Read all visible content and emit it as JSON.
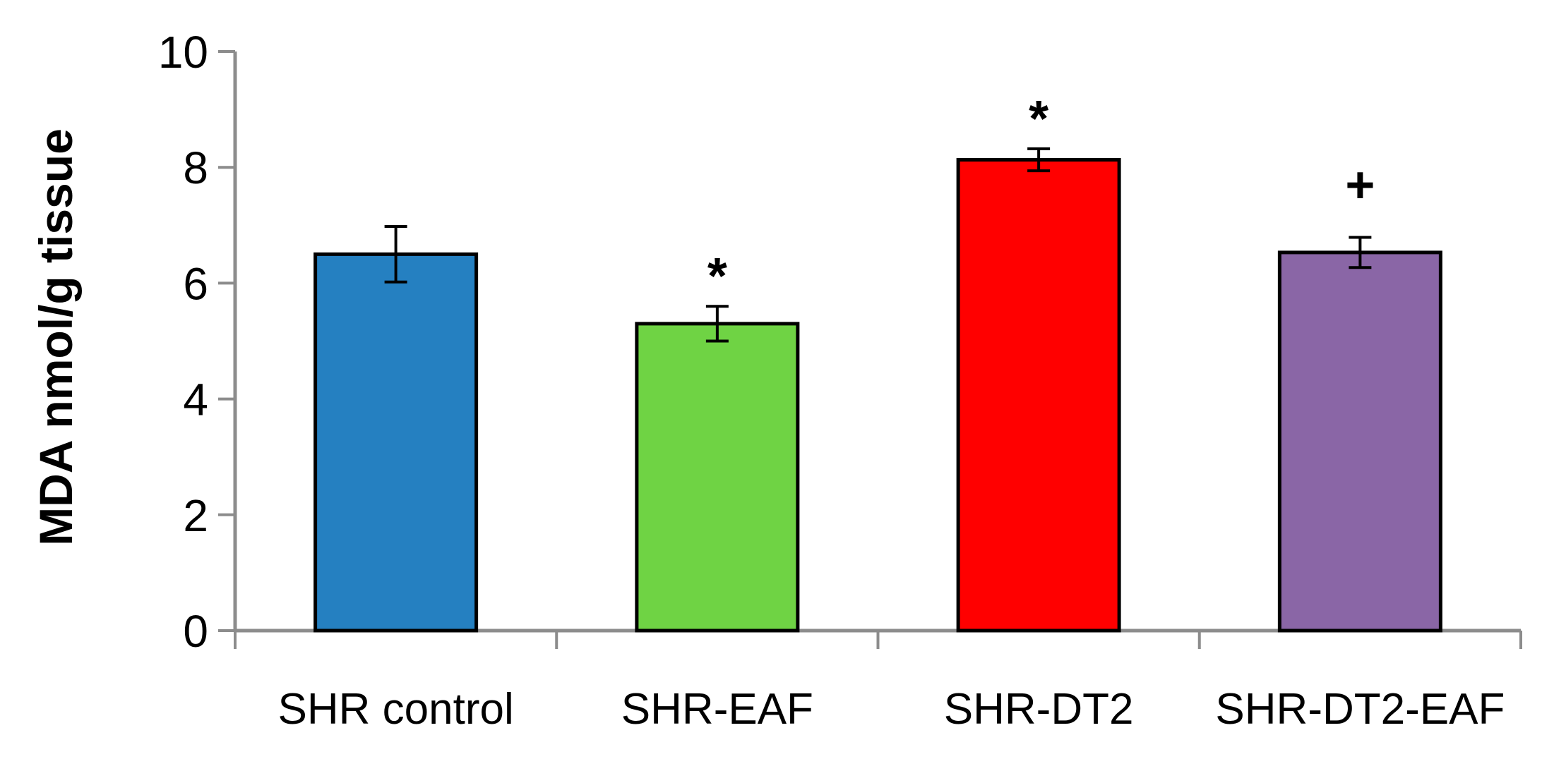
{
  "chart_data": {
    "type": "bar",
    "title": "",
    "xlabel": "",
    "ylabel": "MDA nmol/g tissue",
    "ylim": [
      0,
      10
    ],
    "yticks": [
      0,
      2,
      4,
      6,
      8,
      10
    ],
    "ytick_labels": [
      "0",
      "2",
      "4",
      "6",
      "8",
      "10"
    ],
    "grid": false,
    "categories": [
      "SHR control",
      "SHR-EAF",
      "SHR-DT2",
      "SHR-DT2-EAF"
    ],
    "values": [
      6.5,
      5.3,
      8.13,
      6.53
    ],
    "errors": [
      0.48,
      0.3,
      0.19,
      0.26
    ],
    "annotations": [
      "",
      "*",
      "*",
      "+"
    ],
    "colors": [
      "#2580C1",
      "#6FD344",
      "#FF0000",
      "#8A66A6"
    ],
    "axis_color": "#8C8C8C",
    "bar_edge_color": "#000000"
  }
}
